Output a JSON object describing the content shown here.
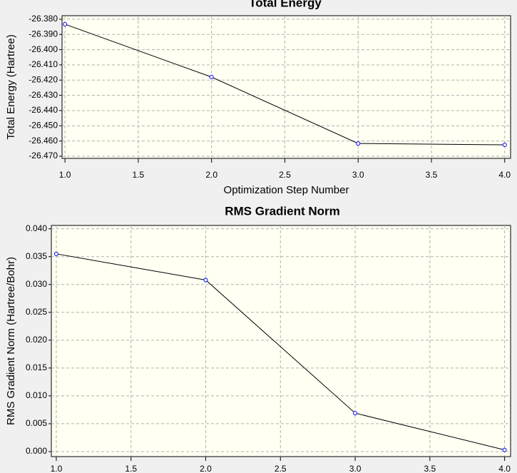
{
  "chart_data": [
    {
      "type": "line",
      "title": "Total Energy",
      "ylabel": "Total Energy (Hartree)",
      "xlabel": "Optimization Step Number",
      "x": [
        1,
        2,
        3,
        4
      ],
      "values": [
        -26.3833,
        -26.418,
        -26.4616,
        -26.4625
      ],
      "color": "#000000",
      "marker_color": "#0000ff",
      "grid": true,
      "xlim": [
        0.98,
        4.04
      ],
      "ylim": [
        -26.4714,
        -26.3777
      ],
      "xticks": [
        {
          "value": 1,
          "label": "1.0"
        },
        {
          "value": 1.5,
          "label": "1.5"
        },
        {
          "value": 2,
          "label": "2.0"
        },
        {
          "value": 2.5,
          "label": "2.5"
        },
        {
          "value": 3,
          "label": "3.0"
        },
        {
          "value": 3.5,
          "label": "3.5"
        },
        {
          "value": 4,
          "label": "4.0"
        }
      ],
      "yticks": [
        {
          "value": -26.38,
          "label": "-26.380"
        },
        {
          "value": -26.39,
          "label": "-26.390"
        },
        {
          "value": -26.4,
          "label": "-26.400"
        },
        {
          "value": -26.41,
          "label": "-26.410"
        },
        {
          "value": -26.42,
          "label": "-26.420"
        },
        {
          "value": -26.43,
          "label": "-26.430"
        },
        {
          "value": -26.44,
          "label": "-26.440"
        },
        {
          "value": -26.45,
          "label": "-26.450"
        },
        {
          "value": -26.46,
          "label": "-26.460"
        },
        {
          "value": -26.47,
          "label": "-26.470"
        }
      ]
    },
    {
      "type": "line",
      "title": "RMS Gradient Norm",
      "ylabel": "RMS Gradient Norm (Hartree/Bohr)",
      "x": [
        1,
        2,
        3,
        4
      ],
      "values": [
        0.0355,
        0.0308,
        0.0069,
        0.0003
      ],
      "color": "#000000",
      "marker_color": "#0000ff",
      "grid": true,
      "xlim": [
        0.967,
        4.04
      ],
      "ylim": [
        -0.0009,
        0.0406
      ],
      "xticks": [
        {
          "value": 1,
          "label": "1.0"
        },
        {
          "value": 1.5,
          "label": "1.5"
        },
        {
          "value": 2,
          "label": "2.0"
        },
        {
          "value": 2.5,
          "label": "2.5"
        },
        {
          "value": 3,
          "label": "3.0"
        },
        {
          "value": 3.5,
          "label": "3.5"
        },
        {
          "value": 4,
          "label": "4.0"
        }
      ],
      "yticks": [
        {
          "value": 0,
          "label": "0.000"
        },
        {
          "value": 0.005,
          "label": "0.005"
        },
        {
          "value": 0.01,
          "label": "0.010"
        },
        {
          "value": 0.015,
          "label": "0.015"
        },
        {
          "value": 0.02,
          "label": "0.020"
        },
        {
          "value": 0.025,
          "label": "0.025"
        },
        {
          "value": 0.03,
          "label": "0.030"
        },
        {
          "value": 0.035,
          "label": "0.035"
        },
        {
          "value": 0.04,
          "label": "0.040"
        }
      ]
    }
  ]
}
